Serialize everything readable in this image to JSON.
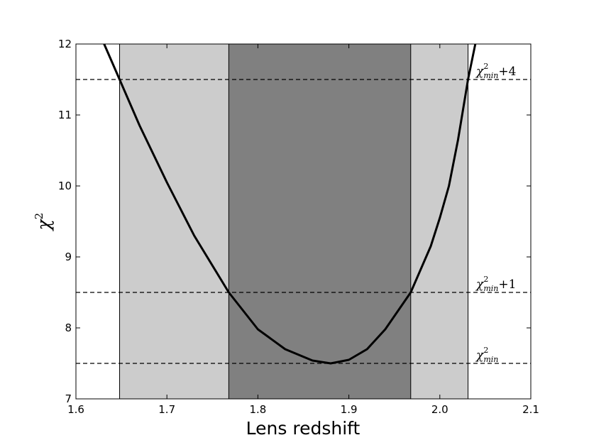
{
  "chart_data": {
    "type": "line",
    "xlabel": "Lens redshift",
    "ylabel": "χ",
    "ylabel_sup": "2",
    "x": [
      1.631,
      1.648,
      1.67,
      1.7,
      1.73,
      1.768,
      1.8,
      1.83,
      1.86,
      1.88,
      1.9,
      1.92,
      1.94,
      1.968,
      1.99,
      2.0,
      2.01,
      2.02,
      2.031,
      2.039
    ],
    "series": [
      {
        "color": "#000000",
        "values": [
          12.0,
          11.5,
          10.85,
          10.05,
          9.3,
          8.5,
          7.98,
          7.7,
          7.54,
          7.5,
          7.55,
          7.7,
          7.98,
          8.5,
          9.15,
          9.55,
          10.0,
          10.65,
          11.5,
          12.0
        ]
      }
    ],
    "bands": [
      {
        "from": 1.648,
        "to": 2.031,
        "color": "#cccccc"
      },
      {
        "from": 1.768,
        "to": 1.968,
        "color": "#808080"
      }
    ],
    "hlines": [
      {
        "value": 7.5,
        "symbol": "χ",
        "sup": "2",
        "sub": "min"
      },
      {
        "value": 8.5,
        "symbol": "χ",
        "sup": "2",
        "sub": "min",
        "suffix": "+1"
      },
      {
        "value": 11.5,
        "symbol": "χ",
        "sup": "2",
        "sub": "min",
        "suffix": "+4"
      }
    ],
    "xlim": [
      1.6,
      2.1
    ],
    "ylim": [
      7,
      12
    ],
    "xticks": [
      1.6,
      1.7,
      1.8,
      1.9,
      {
        "value": 2.0,
        "label": "2.0"
      },
      2.1
    ],
    "yticks": [
      7,
      8,
      9,
      10,
      11,
      12
    ]
  }
}
